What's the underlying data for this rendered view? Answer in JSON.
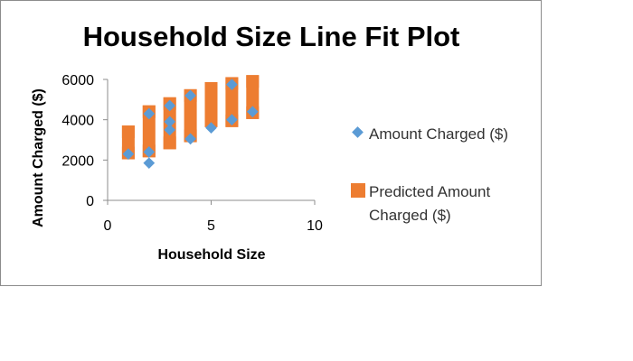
{
  "chart_data": {
    "type": "scatter",
    "title": "Household Size Line Fit  Plot",
    "xlabel": "Household Size",
    "ylabel": "Amount Charged ($)",
    "xlim": [
      0,
      10
    ],
    "ylim": [
      0,
      6000
    ],
    "xticks": [
      0,
      5,
      10
    ],
    "yticks": [
      0,
      2000,
      4000,
      6000
    ],
    "xtick_labels": [
      "0",
      "5",
      "10"
    ],
    "ytick_labels": [
      "0",
      "2000",
      "4000",
      "6000"
    ],
    "grid": false,
    "legend_position": "right",
    "series": [
      {
        "name": "Amount Charged ($)",
        "marker": "diamond",
        "color": "#5b9bd5",
        "points": [
          {
            "x": 1,
            "y": 2300
          },
          {
            "x": 2,
            "y": 1850
          },
          {
            "x": 2,
            "y": 2400
          },
          {
            "x": 2,
            "y": 4300
          },
          {
            "x": 3,
            "y": 3500
          },
          {
            "x": 3,
            "y": 3900
          },
          {
            "x": 3,
            "y": 4700
          },
          {
            "x": 4,
            "y": 3050
          },
          {
            "x": 4,
            "y": 5200
          },
          {
            "x": 5,
            "y": 3600
          },
          {
            "x": 6,
            "y": 5750
          },
          {
            "x": 6,
            "y": 4000
          },
          {
            "x": 7,
            "y": 4400
          }
        ]
      },
      {
        "name": "Predicted Amount Charged ($)",
        "marker": "square",
        "color": "#ed7d31",
        "points": [
          {
            "x": 1,
            "y": 2350
          },
          {
            "x": 1,
            "y": 3400
          },
          {
            "x": 2,
            "y": 2450
          },
          {
            "x": 2,
            "y": 4400
          },
          {
            "x": 3,
            "y": 2850
          },
          {
            "x": 3,
            "y": 4800
          },
          {
            "x": 4,
            "y": 3200
          },
          {
            "x": 4,
            "y": 5200
          },
          {
            "x": 5,
            "y": 3950
          },
          {
            "x": 5,
            "y": 5550
          },
          {
            "x": 6,
            "y": 3950
          },
          {
            "x": 6,
            "y": 5800
          },
          {
            "x": 7,
            "y": 4350
          },
          {
            "x": 7,
            "y": 5900
          }
        ]
      }
    ]
  }
}
